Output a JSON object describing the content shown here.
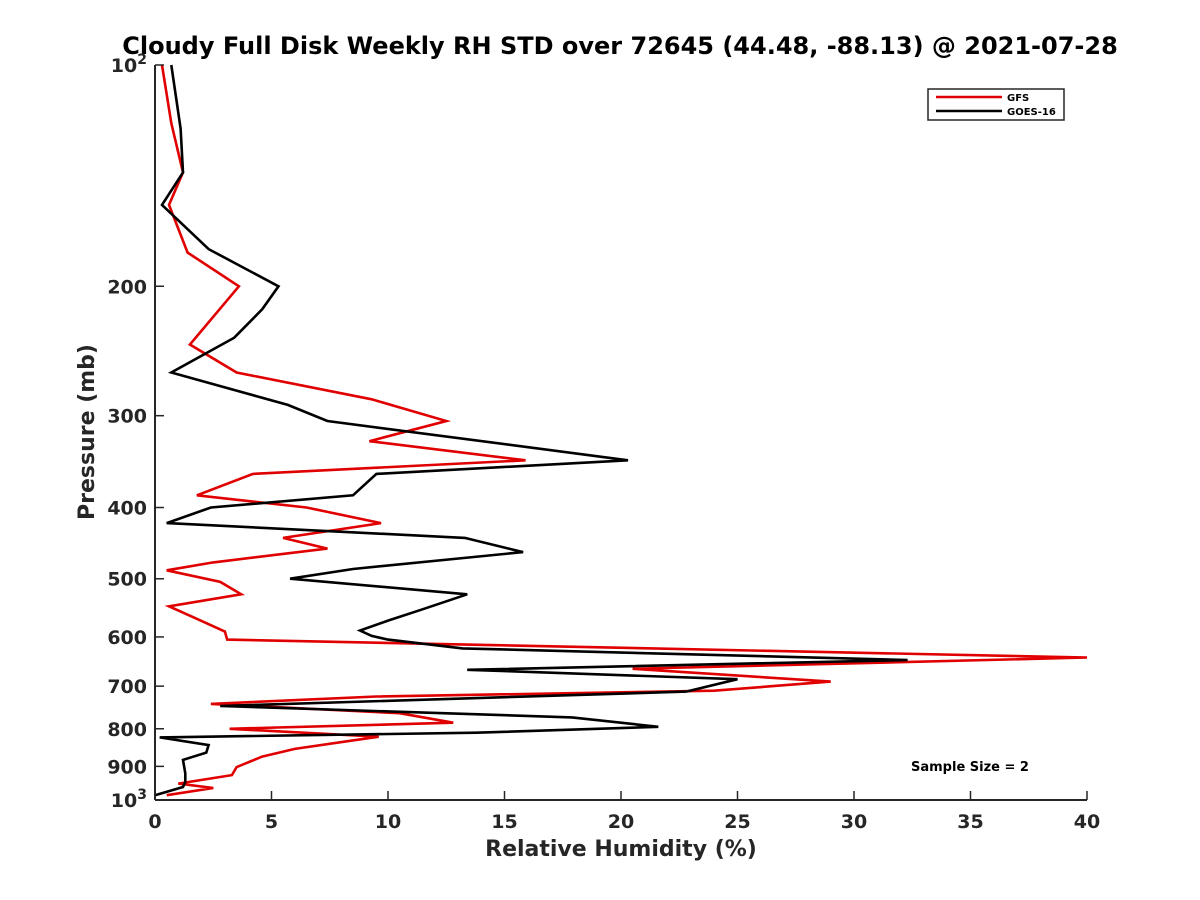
{
  "chart_data": {
    "type": "line",
    "orientation": "profile",
    "title": "Cloudy Full Disk Weekly RH STD over 72645 (44.48, -88.13) @ 2021-07-28",
    "xlabel": "Relative Humidity (%)",
    "ylabel": "Pressure (mb)",
    "xlim": [
      0,
      40
    ],
    "ylim": [
      100,
      1000
    ],
    "yscale": "log",
    "y_reversed": true,
    "grid": false,
    "legend_position": "top-right",
    "x_ticks": [
      "0",
      "5",
      "10",
      "15",
      "20",
      "25",
      "30",
      "35",
      "40"
    ],
    "y_ticks": [
      {
        "value": 100,
        "base": "10",
        "exp": "2"
      },
      {
        "value": 200,
        "label": "200"
      },
      {
        "value": 300,
        "label": "300"
      },
      {
        "value": 400,
        "label": "400"
      },
      {
        "value": 500,
        "label": "500"
      },
      {
        "value": 600,
        "label": "600"
      },
      {
        "value": 700,
        "label": "700"
      },
      {
        "value": 800,
        "label": "800"
      },
      {
        "value": 900,
        "label": "900"
      },
      {
        "value": 1000,
        "base": "10",
        "exp": "3"
      }
    ],
    "annotation": "Sample Size = 2",
    "series": [
      {
        "name": "GFS",
        "color": "#e00000",
        "points": [
          [
            0.3,
            100
          ],
          [
            0.7,
            120
          ],
          [
            1.2,
            140
          ],
          [
            0.6,
            155
          ],
          [
            1.4,
            180
          ],
          [
            3.6,
            200
          ],
          [
            1.5,
            240
          ],
          [
            3.5,
            262
          ],
          [
            9.3,
            285
          ],
          [
            12.5,
            305
          ],
          [
            9.2,
            325
          ],
          [
            15.9,
            345
          ],
          [
            4.2,
            360
          ],
          [
            1.8,
            385
          ],
          [
            6.5,
            400
          ],
          [
            9.7,
            420
          ],
          [
            5.5,
            440
          ],
          [
            7.4,
            455
          ],
          [
            2.5,
            475
          ],
          [
            0.5,
            487
          ],
          [
            2.8,
            505
          ],
          [
            3.7,
            525
          ],
          [
            0.6,
            545
          ],
          [
            1.7,
            565
          ],
          [
            3.0,
            590
          ],
          [
            3.1,
            605
          ],
          [
            40.0,
            640
          ],
          [
            20.5,
            663
          ],
          [
            29.0,
            690
          ],
          [
            24.0,
            710
          ],
          [
            9.5,
            723
          ],
          [
            2.4,
            740
          ],
          [
            10.5,
            762
          ],
          [
            12.8,
            785
          ],
          [
            3.2,
            800
          ],
          [
            9.6,
            820
          ],
          [
            6.0,
            852
          ],
          [
            4.6,
            873
          ],
          [
            3.5,
            902
          ],
          [
            3.3,
            925
          ],
          [
            1.0,
            950
          ],
          [
            2.5,
            963
          ],
          [
            0.5,
            985
          ]
        ]
      },
      {
        "name": "GOES-16",
        "color": "#000000",
        "points": [
          [
            0.7,
            100
          ],
          [
            1.1,
            122
          ],
          [
            1.2,
            140
          ],
          [
            0.3,
            155
          ],
          [
            2.3,
            178
          ],
          [
            5.3,
            200
          ],
          [
            4.6,
            215
          ],
          [
            3.4,
            235
          ],
          [
            0.7,
            262
          ],
          [
            5.7,
            290
          ],
          [
            7.4,
            305
          ],
          [
            20.3,
            345
          ],
          [
            9.5,
            360
          ],
          [
            8.5,
            385
          ],
          [
            2.4,
            400
          ],
          [
            0.5,
            420
          ],
          [
            13.3,
            440
          ],
          [
            15.8,
            460
          ],
          [
            8.5,
            485
          ],
          [
            5.8,
            500
          ],
          [
            13.4,
            525
          ],
          [
            11.5,
            550
          ],
          [
            10.0,
            570
          ],
          [
            8.8,
            588
          ],
          [
            9.3,
            598
          ],
          [
            10.0,
            605
          ],
          [
            13.2,
            622
          ],
          [
            32.3,
            645
          ],
          [
            13.4,
            665
          ],
          [
            25.0,
            685
          ],
          [
            22.8,
            712
          ],
          [
            2.8,
            745
          ],
          [
            17.9,
            772
          ],
          [
            21.6,
            795
          ],
          [
            13.8,
            810
          ],
          [
            0.2,
            822
          ],
          [
            2.3,
            842
          ],
          [
            2.2,
            862
          ],
          [
            1.2,
            882
          ],
          [
            1.3,
            920
          ],
          [
            1.3,
            945
          ],
          [
            1.2,
            960
          ],
          [
            0.0,
            985
          ]
        ]
      }
    ]
  }
}
